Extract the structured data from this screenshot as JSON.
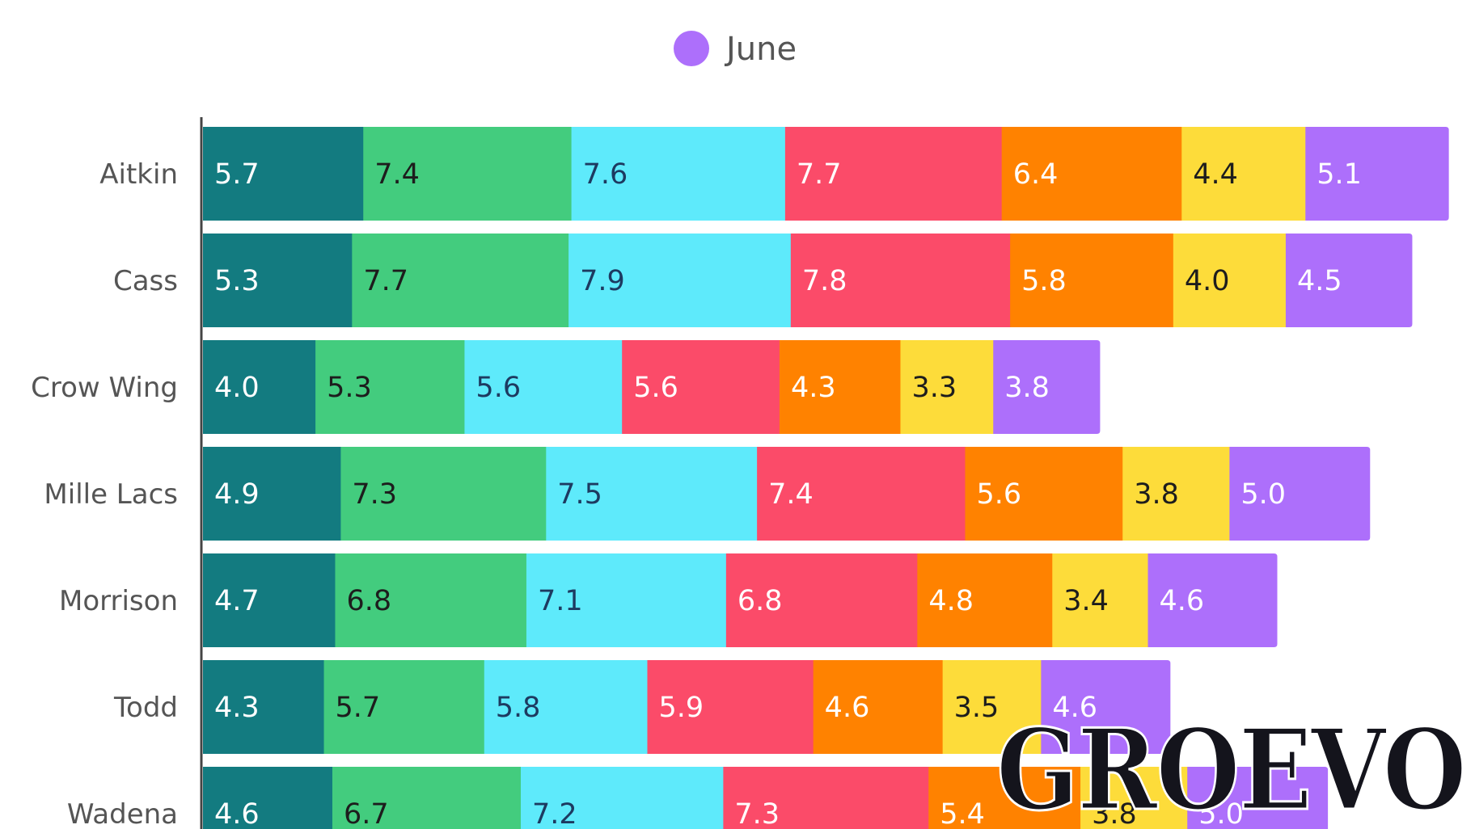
{
  "chart_data": {
    "type": "bar",
    "orientation": "horizontal",
    "stacked": true,
    "categories": [
      "Aitkin",
      "Cass",
      "Crow Wing",
      "Mille Lacs",
      "Morrison",
      "Todd",
      "Wadena"
    ],
    "series": [
      {
        "color": "#137b80",
        "label_color": "#ffffff",
        "values": [
          5.7,
          5.3,
          4.0,
          4.9,
          4.7,
          4.3,
          4.6
        ]
      },
      {
        "color": "#43cc7e",
        "label_color": "#1d1d1d",
        "values": [
          7.4,
          7.7,
          5.3,
          7.3,
          6.8,
          5.7,
          6.7
        ]
      },
      {
        "color": "#5eeafb",
        "label_color": "#1d3a60",
        "values": [
          7.6,
          7.9,
          5.6,
          7.5,
          7.1,
          5.8,
          7.2
        ]
      },
      {
        "color": "#fb4b69",
        "label_color": "#ffffff",
        "values": [
          7.7,
          7.8,
          5.6,
          7.4,
          6.8,
          5.9,
          7.3
        ]
      },
      {
        "color": "#ff8200",
        "label_color": "#ffffff",
        "values": [
          6.4,
          5.8,
          4.3,
          5.6,
          4.8,
          4.6,
          5.4
        ]
      },
      {
        "color": "#fddc3a",
        "label_color": "#1d1d1d",
        "values": [
          4.4,
          4.0,
          3.3,
          3.8,
          3.4,
          3.5,
          3.8
        ]
      },
      {
        "name": "June",
        "color": "#ad6ffb",
        "label_color": "#ffffff",
        "values": [
          5.1,
          4.5,
          3.8,
          5.0,
          4.6,
          4.6,
          5.0
        ]
      }
    ],
    "xlim": [
      0,
      45
    ],
    "legend_position": "top",
    "grid": false
  },
  "watermark": {
    "text": "GROEVO",
    "fill": "#14141c",
    "outline": "#ffffff"
  }
}
